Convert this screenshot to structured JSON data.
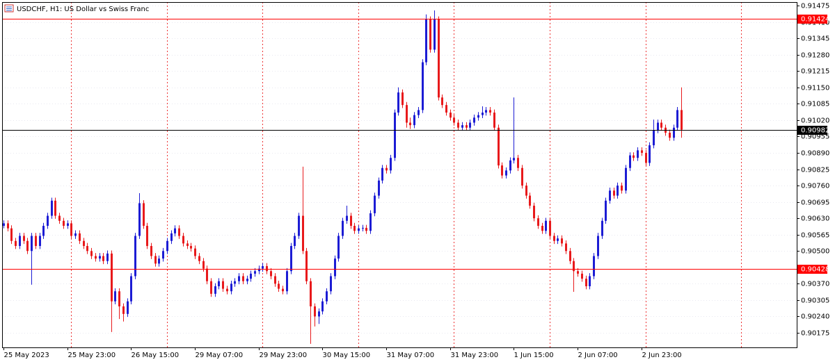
{
  "chart_data": {
    "type": "candlestick",
    "title": "USDCHF, H1:  US Dollar vs Swiss Franc",
    "categories": [
      "25 May 2023",
      null,
      null,
      null,
      null,
      null,
      null,
      null,
      null,
      null,
      null,
      null,
      null,
      null,
      null,
      null,
      "25 May 23:00",
      null,
      null,
      null,
      null,
      null,
      null,
      null,
      null,
      null,
      null,
      null,
      null,
      null,
      null,
      null,
      "26 May 15:00",
      null,
      null,
      null,
      null,
      null,
      null,
      null,
      null,
      null,
      null,
      null,
      null,
      null,
      null,
      null,
      "29 May 07:00",
      null,
      null,
      null,
      null,
      null,
      null,
      null,
      null,
      null,
      null,
      null,
      null,
      null,
      null,
      null,
      "29 May 23:00",
      null,
      null,
      null,
      null,
      null,
      null,
      null,
      null,
      null,
      null,
      null,
      null,
      null,
      null,
      null,
      "30 May 15:00",
      null,
      null,
      null,
      null,
      null,
      null,
      null,
      null,
      null,
      null,
      null,
      null,
      null,
      null,
      null,
      "31 May 07:00",
      null,
      null,
      null,
      null,
      null,
      null,
      null,
      null,
      null,
      null,
      null,
      null,
      null,
      null,
      null,
      "31 May 23:00",
      null,
      null,
      null,
      null,
      null,
      null,
      null,
      null,
      null,
      null,
      null,
      null,
      null,
      null,
      null,
      "1 Jun 15:00",
      null,
      null,
      null,
      null,
      null,
      null,
      null,
      null,
      null,
      null,
      null,
      null,
      null,
      null,
      null,
      "2 Jun 07:00",
      null,
      null,
      null,
      null,
      null,
      null,
      null,
      null,
      null,
      null,
      null,
      null,
      null,
      null,
      null,
      "2 Jun 23:00",
      null,
      null,
      null,
      null,
      null,
      null,
      null,
      null,
      null,
      null
    ],
    "open": [
      0.906,
      0.9061,
      0.9059,
      0.9054,
      0.9052,
      0.9056,
      0.9054,
      0.905,
      0.9056,
      0.9052,
      0.9056,
      0.906,
      0.9064,
      0.907,
      0.9064,
      0.9062,
      0.906,
      0.9061,
      0.9056,
      0.9057,
      0.9054,
      0.9052,
      0.905,
      0.9048,
      0.9047,
      0.9048,
      0.9046,
      0.9049,
      0.903,
      0.9034,
      0.9028,
      0.9025,
      0.903,
      0.904,
      0.9056,
      0.9069,
      0.906,
      0.9052,
      0.9048,
      0.9045,
      0.9047,
      0.905,
      0.9054,
      0.9057,
      0.9059,
      0.9056,
      0.9053,
      0.9052,
      0.9051,
      0.9048,
      0.9046,
      0.9043,
      0.9038,
      0.9033,
      0.9036,
      0.9038,
      0.9035,
      0.9034,
      0.9037,
      0.9038,
      0.904,
      0.9038,
      0.9039,
      0.9041,
      0.9042,
      0.9043,
      0.9044,
      0.9042,
      0.904,
      0.9037,
      0.9035,
      0.9034,
      0.9042,
      0.9052,
      0.9056,
      0.9064,
      0.905,
      0.9038,
      0.9028,
      0.9024,
      0.9026,
      0.903,
      0.9034,
      0.904,
      0.9047,
      0.9056,
      0.9062,
      0.9064,
      0.906,
      0.9058,
      0.9059,
      0.90592,
      0.9058,
      0.9065,
      0.9072,
      0.9078,
      0.9083,
      0.9082,
      0.9087,
      0.9105,
      0.9113,
      0.9108,
      0.9101,
      0.91,
      0.9104,
      0.9106,
      0.9125,
      0.9142,
      0.913,
      0.9142,
      0.9111,
      0.9108,
      0.9105,
      0.9103,
      0.9101,
      0.9099,
      0.91,
      0.9099,
      0.9101,
      0.9103,
      0.9104,
      0.9105,
      0.9106,
      0.9105,
      0.9099,
      0.9084,
      0.908,
      0.9082,
      0.9086,
      0.9087,
      0.9083,
      0.9076,
      0.9072,
      0.9068,
      0.9063,
      0.906,
      0.9058,
      0.9062,
      0.9056,
      0.9054,
      0.9055,
      0.9053,
      0.905,
      0.9046,
      0.9042,
      0.9041,
      0.9039,
      0.9036,
      0.904,
      0.9048,
      0.9056,
      0.9062,
      0.907,
      0.9074,
      0.9072,
      0.9076,
      0.9074,
      0.9083,
      0.9088,
      0.9087,
      0.909,
      0.9089,
      0.9085,
      0.9092,
      0.9098,
      0.9101,
      0.9099,
      0.9097,
      0.9095,
      0.9099,
      0.9106
    ],
    "high": [
      0.90622,
      0.90622,
      0.90602,
      0.90552,
      0.90572,
      0.90572,
      0.90552,
      0.90572,
      0.90572,
      0.90572,
      0.90612,
      0.90652,
      0.90712,
      0.90712,
      0.90652,
      0.90632,
      0.90622,
      0.90622,
      0.90582,
      0.90582,
      0.90552,
      0.90532,
      0.90512,
      0.90492,
      0.90492,
      0.90492,
      0.90502,
      0.90502,
      0.90352,
      0.90352,
      0.90292,
      0.90312,
      0.90412,
      0.90572,
      0.9073,
      0.90702,
      0.90612,
      0.90532,
      0.90492,
      0.90482,
      0.90512,
      0.90552,
      0.90582,
      0.90602,
      0.90602,
      0.90572,
      0.90542,
      0.90532,
      0.90522,
      0.90492,
      0.90472,
      0.90442,
      0.90392,
      0.90372,
      0.90392,
      0.90392,
      0.90362,
      0.90382,
      0.90392,
      0.90412,
      0.90412,
      0.90402,
      0.90422,
      0.90432,
      0.90442,
      0.90452,
      0.90452,
      0.90432,
      0.90412,
      0.90382,
      0.90362,
      0.90432,
      0.90532,
      0.90572,
      0.90652,
      0.90835,
      0.90512,
      0.90392,
      0.90292,
      0.90272,
      0.90312,
      0.90352,
      0.90412,
      0.90482,
      0.90572,
      0.90632,
      0.9068,
      0.90652,
      0.90612,
      0.90602,
      0.90604,
      0.90604,
      0.90662,
      0.90732,
      0.90792,
      0.90842,
      0.90842,
      0.90882,
      0.91062,
      0.9115,
      0.91142,
      0.91092,
      0.9103,
      0.91052,
      0.91072,
      0.91262,
      0.9144,
      0.91432,
      0.91456,
      0.91432,
      0.91122,
      0.91092,
      0.91062,
      0.91042,
      0.91022,
      0.91012,
      0.91012,
      0.91022,
      0.91042,
      0.91052,
      0.91075,
      0.91072,
      0.91072,
      0.91062,
      0.91002,
      0.90852,
      0.90832,
      0.90872,
      0.9111,
      0.90882,
      0.90842,
      0.90772,
      0.90732,
      0.90692,
      0.90642,
      0.90612,
      0.90632,
      0.90632,
      0.90572,
      0.90562,
      0.90562,
      0.90542,
      0.90512,
      0.90472,
      0.90432,
      0.90422,
      0.90402,
      0.90412,
      0.90492,
      0.90572,
      0.90632,
      0.90712,
      0.90752,
      0.90752,
      0.90772,
      0.90772,
      0.90842,
      0.90892,
      0.90892,
      0.90912,
      0.90912,
      0.90902,
      0.90932,
      0.91022,
      0.91022,
      0.91022,
      0.91002,
      0.90982,
      0.91002,
      0.91072,
      0.9115
    ],
    "low": [
      0.9059,
      0.90578,
      0.90528,
      0.90508,
      0.90508,
      0.90528,
      0.90488,
      0.90366,
      0.90508,
      0.90508,
      0.90548,
      0.90588,
      0.90628,
      0.90628,
      0.90608,
      0.90588,
      0.90588,
      0.90548,
      0.90548,
      0.90528,
      0.90508,
      0.90488,
      0.90468,
      0.90458,
      0.90458,
      0.90448,
      0.90448,
      0.90178,
      0.90288,
      0.9023,
      0.9022,
      0.90238,
      0.90288,
      0.90388,
      0.90548,
      0.90588,
      0.90508,
      0.90468,
      0.90438,
      0.90438,
      0.90458,
      0.90488,
      0.90528,
      0.90558,
      0.90548,
      0.90518,
      0.90508,
      0.90498,
      0.90468,
      0.90448,
      0.90418,
      0.90368,
      0.90318,
      0.90318,
      0.90348,
      0.90338,
      0.90328,
      0.90328,
      0.90358,
      0.90368,
      0.90368,
      0.90368,
      0.90378,
      0.90398,
      0.90408,
      0.90418,
      0.90408,
      0.90388,
      0.90358,
      0.90338,
      0.90328,
      0.90328,
      0.90408,
      0.90508,
      0.90548,
      0.90488,
      0.90368,
      0.90131,
      0.902,
      0.9021,
      0.90248,
      0.90288,
      0.90328,
      0.90388,
      0.90458,
      0.90548,
      0.90608,
      0.90588,
      0.90568,
      0.90568,
      0.90578,
      0.90568,
      0.90568,
      0.90638,
      0.90708,
      0.90768,
      0.90808,
      0.90808,
      0.90858,
      0.91038,
      0.91068,
      0.9099,
      0.90985,
      0.90988,
      0.91028,
      0.91048,
      0.91238,
      0.91288,
      0.91288,
      0.91098,
      0.91068,
      0.91038,
      0.91018,
      0.90998,
      0.90978,
      0.90978,
      0.90978,
      0.90978,
      0.90998,
      0.91018,
      0.91028,
      0.91038,
      0.91038,
      0.90978,
      0.90828,
      0.90788,
      0.90788,
      0.90808,
      0.90848,
      0.90818,
      0.90748,
      0.90708,
      0.90668,
      0.90618,
      0.90588,
      0.90568,
      0.90568,
      0.90548,
      0.90528,
      0.90528,
      0.90518,
      0.90488,
      0.90448,
      0.90338,
      0.90398,
      0.90378,
      0.90348,
      0.90348,
      0.90388,
      0.90468,
      0.90548,
      0.90608,
      0.90688,
      0.90708,
      0.90708,
      0.90728,
      0.90728,
      0.90818,
      0.90858,
      0.90858,
      0.90878,
      0.90838,
      0.90838,
      0.90908,
      0.90968,
      0.90978,
      0.90958,
      0.90938,
      0.90938,
      0.90978,
      0.9095
    ],
    "close": [
      0.9061,
      0.9059,
      0.9054,
      0.9052,
      0.9056,
      0.9054,
      0.905,
      0.9056,
      0.9052,
      0.9056,
      0.906,
      0.9064,
      0.907,
      0.9064,
      0.9062,
      0.906,
      0.9061,
      0.9056,
      0.9057,
      0.9054,
      0.9052,
      0.905,
      0.9048,
      0.9047,
      0.9048,
      0.9046,
      0.9049,
      0.903,
      0.9034,
      0.9028,
      0.9025,
      0.903,
      0.904,
      0.9056,
      0.9069,
      0.906,
      0.9052,
      0.9048,
      0.9045,
      0.9047,
      0.905,
      0.9054,
      0.9057,
      0.9059,
      0.9056,
      0.9053,
      0.9052,
      0.9051,
      0.9048,
      0.9046,
      0.9043,
      0.9038,
      0.9033,
      0.9036,
      0.9038,
      0.9035,
      0.9034,
      0.9037,
      0.9038,
      0.904,
      0.9038,
      0.9039,
      0.9041,
      0.9042,
      0.9043,
      0.9044,
      0.9042,
      0.904,
      0.9037,
      0.9035,
      0.9034,
      0.9042,
      0.9052,
      0.9056,
      0.9064,
      0.905,
      0.9038,
      0.9028,
      0.9024,
      0.9026,
      0.903,
      0.9034,
      0.904,
      0.9047,
      0.9056,
      0.9062,
      0.9064,
      0.906,
      0.9058,
      0.9059,
      0.90592,
      0.9058,
      0.9065,
      0.9072,
      0.9078,
      0.9083,
      0.9082,
      0.9087,
      0.9105,
      0.9113,
      0.9108,
      0.9101,
      0.91,
      0.9104,
      0.9106,
      0.9125,
      0.9142,
      0.913,
      0.9142,
      0.9111,
      0.9108,
      0.9105,
      0.9103,
      0.9101,
      0.9099,
      0.91,
      0.9099,
      0.9101,
      0.9103,
      0.9104,
      0.9105,
      0.9106,
      0.9105,
      0.9099,
      0.9084,
      0.908,
      0.9082,
      0.9086,
      0.9087,
      0.9083,
      0.9076,
      0.9072,
      0.9068,
      0.9063,
      0.906,
      0.9058,
      0.9062,
      0.9056,
      0.9054,
      0.9055,
      0.9053,
      0.905,
      0.9046,
      0.9042,
      0.9041,
      0.9039,
      0.9036,
      0.904,
      0.9048,
      0.9056,
      0.9062,
      0.907,
      0.9074,
      0.9072,
      0.9076,
      0.9074,
      0.9083,
      0.9088,
      0.9087,
      0.909,
      0.9089,
      0.9085,
      0.9092,
      0.9098,
      0.9101,
      0.9099,
      0.9097,
      0.9095,
      0.9099,
      0.9106,
      0.90982
    ],
    "up_color": "#1c1cd4",
    "down_color": "#e8191b",
    "ylim": [
      0.90117,
      0.91489
    ],
    "yticks": [
      0.91475,
      {
        "value": 0.9141,
        "label": "0.91410"
      },
      0.91345,
      {
        "value": 0.9128,
        "label": "0.91280"
      },
      0.91215,
      {
        "value": 0.9115,
        "label": "0.91150"
      },
      0.91085,
      {
        "value": 0.9102,
        "label": "0.91020"
      },
      0.90955,
      {
        "value": 0.9089,
        "label": "0.90890"
      },
      0.90825,
      {
        "value": 0.9076,
        "label": "0.90760"
      },
      0.90695,
      {
        "value": 0.9063,
        "label": "0.90630"
      },
      0.90565,
      {
        "value": 0.905,
        "label": "0.90500"
      },
      {
        "value": 0.9037,
        "label": "0.90370"
      },
      0.90305,
      {
        "value": 0.9024,
        "label": "0.90240"
      },
      0.90175
    ],
    "grid": true,
    "levels": [
      {
        "value": 0.91424,
        "color": "#ff0000"
      },
      {
        "value": 0.90982,
        "color": "#000000"
      },
      {
        "value": 0.90428,
        "color": "#ff0000"
      }
    ]
  }
}
